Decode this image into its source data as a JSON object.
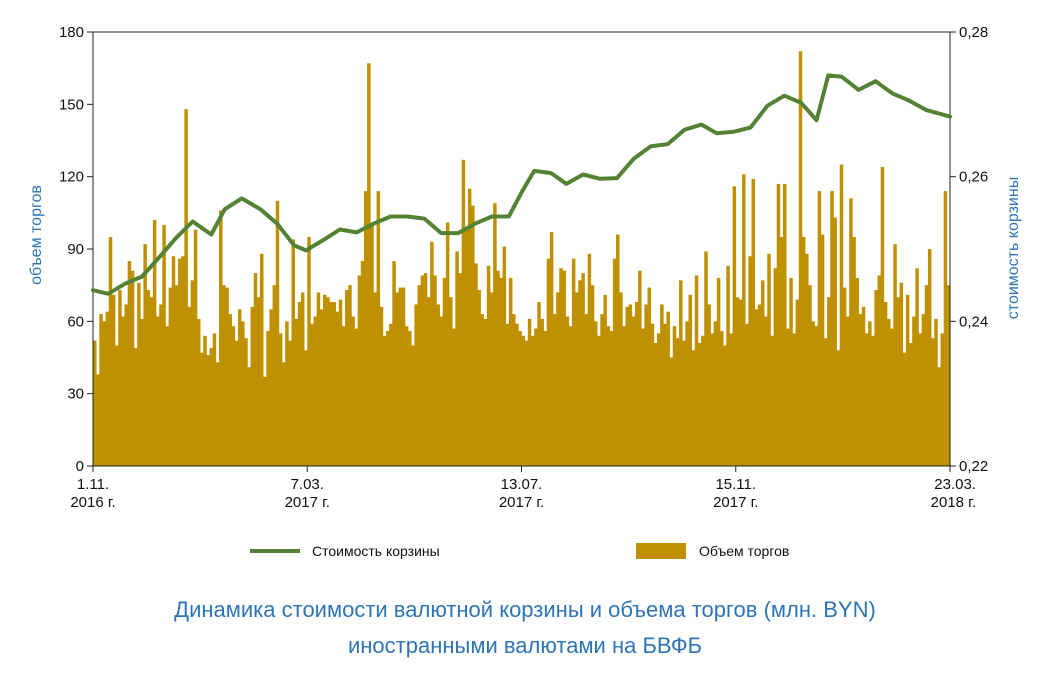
{
  "caption": {
    "line1": "Динамика стоимости валютной корзины и объема торгов (млн. BYN)",
    "line2": "иностранными валютами на БВФБ"
  },
  "chart_data": {
    "type": "bar+line",
    "left_axis": {
      "label": "объем торгов",
      "ylim": [
        0,
        180
      ],
      "ticks": [
        "0",
        "30",
        "60",
        "90",
        "120",
        "150",
        "180"
      ]
    },
    "right_axis": {
      "label": "стоимость корзины",
      "ylim": [
        0.22,
        0.28
      ],
      "ticks": [
        "0,22",
        "0,24",
        "0,26",
        "0,28"
      ]
    },
    "x_ticks": [
      {
        "line1": "1.11.",
        "line2": "2016 г."
      },
      {
        "line1": "7.03.",
        "line2": "2017 г."
      },
      {
        "line1": "13.07.",
        "line2": "2017 г."
      },
      {
        "line1": "15.11.",
        "line2": "2017 г."
      },
      {
        "line1": "23.03.",
        "line2": "2018 г."
      }
    ],
    "x_range": [
      "2016-11-01",
      "2018-03-23"
    ],
    "legend": [
      {
        "label": "Стоимость корзины",
        "kind": "line",
        "color": "#548235"
      },
      {
        "label": "Объем торгов",
        "kind": "bar",
        "color": "#bf9000"
      }
    ],
    "line_series": {
      "name": "Стоимость корзины",
      "points": [
        [
          "2016-11-01",
          0.2443
        ],
        [
          "2016-11-10",
          0.2438
        ],
        [
          "2016-11-20",
          0.2452
        ],
        [
          "2016-11-30",
          0.2462
        ],
        [
          "2016-12-10",
          0.2488
        ],
        [
          "2016-12-20",
          0.2515
        ],
        [
          "2016-12-30",
          0.2538
        ],
        [
          "2017-01-10",
          0.252
        ],
        [
          "2017-01-18",
          0.2555
        ],
        [
          "2017-01-28",
          0.257
        ],
        [
          "2017-02-08",
          0.2555
        ],
        [
          "2017-02-18",
          0.2535
        ],
        [
          "2017-02-28",
          0.2505
        ],
        [
          "2017-03-07",
          0.2498
        ],
        [
          "2017-03-17",
          0.2512
        ],
        [
          "2017-03-27",
          0.2527
        ],
        [
          "2017-04-06",
          0.2523
        ],
        [
          "2017-04-16",
          0.2535
        ],
        [
          "2017-04-26",
          0.2545
        ],
        [
          "2017-05-06",
          0.2545
        ],
        [
          "2017-05-16",
          0.2542
        ],
        [
          "2017-05-26",
          0.2522
        ],
        [
          "2017-06-05",
          0.2522
        ],
        [
          "2017-06-15",
          0.2535
        ],
        [
          "2017-06-25",
          0.2545
        ],
        [
          "2017-07-05",
          0.2545
        ],
        [
          "2017-07-13",
          0.258
        ],
        [
          "2017-07-20",
          0.2608
        ],
        [
          "2017-07-30",
          0.2605
        ],
        [
          "2017-08-08",
          0.259
        ],
        [
          "2017-08-18",
          0.2603
        ],
        [
          "2017-08-28",
          0.2597
        ],
        [
          "2017-09-07",
          0.2598
        ],
        [
          "2017-09-17",
          0.2625
        ],
        [
          "2017-09-27",
          0.2642
        ],
        [
          "2017-10-07",
          0.2645
        ],
        [
          "2017-10-17",
          0.2665
        ],
        [
          "2017-10-27",
          0.2672
        ],
        [
          "2017-11-05",
          0.266
        ],
        [
          "2017-11-15",
          0.2662
        ],
        [
          "2017-11-25",
          0.2668
        ],
        [
          "2017-12-05",
          0.2698
        ],
        [
          "2017-12-15",
          0.2712
        ],
        [
          "2017-12-25",
          0.2702
        ],
        [
          "2018-01-03",
          0.2678
        ],
        [
          "2018-01-10",
          0.274
        ],
        [
          "2018-01-18",
          0.2738
        ],
        [
          "2018-01-28",
          0.272
        ],
        [
          "2018-02-07",
          0.2732
        ],
        [
          "2018-02-17",
          0.2715
        ],
        [
          "2018-02-27",
          0.2705
        ],
        [
          "2018-03-09",
          0.2692
        ],
        [
          "2018-03-23",
          0.2683
        ]
      ]
    },
    "bar_series": {
      "name": "Объем торгов",
      "values": [
        52,
        38,
        63,
        60,
        64,
        95,
        71,
        50,
        73,
        62,
        67,
        85,
        81,
        49,
        76,
        61,
        92,
        73,
        70,
        102,
        62,
        67,
        100,
        58,
        74,
        87,
        75,
        86,
        87,
        148,
        66,
        77,
        98,
        61,
        47,
        54,
        46,
        49,
        55,
        43,
        106,
        75,
        74,
        63,
        58,
        52,
        65,
        60,
        53,
        41,
        66,
        80,
        70,
        88,
        37,
        56,
        65,
        75,
        110,
        55,
        43,
        60,
        52,
        94,
        61,
        68,
        72,
        48,
        95,
        59,
        62,
        72,
        65,
        71,
        70,
        68,
        68,
        64,
        69,
        58,
        73,
        75,
        62,
        57,
        79,
        85,
        114,
        167,
        100,
        72,
        114,
        66,
        54,
        56,
        59,
        85,
        72,
        74,
        74,
        58,
        56,
        50,
        67,
        75,
        79,
        80,
        70,
        93,
        79,
        67,
        62,
        78,
        101,
        70,
        57,
        89,
        80,
        127,
        99,
        115,
        108,
        84,
        73,
        63,
        61,
        83,
        72,
        109,
        81,
        78,
        91,
        59,
        78,
        63,
        59,
        56,
        54,
        52,
        61,
        54,
        57,
        68,
        61,
        56,
        86,
        97,
        63,
        72,
        82,
        81,
        62,
        58,
        86,
        72,
        77,
        80,
        63,
        88,
        75,
        60,
        54,
        63,
        71,
        58,
        56,
        86,
        96,
        72,
        58,
        66,
        67,
        62,
        68,
        81,
        57,
        67,
        74,
        59,
        51,
        55,
        67,
        59,
        64,
        45,
        58,
        53,
        77,
        52,
        60,
        71,
        48,
        79,
        51,
        54,
        89,
        67,
        55,
        60,
        78,
        56,
        50,
        83,
        55,
        116,
        70,
        69,
        121,
        59,
        87,
        119,
        65,
        67,
        77,
        62,
        88,
        54,
        82,
        117,
        95,
        117,
        57,
        78,
        55,
        69,
        172,
        95,
        88,
        75,
        60,
        58,
        114,
        96,
        53,
        70,
        114,
        103,
        48,
        125,
        74,
        62,
        111,
        95,
        78,
        63,
        66,
        55,
        60,
        54,
        73,
        79,
        124,
        68,
        61,
        57,
        92,
        70,
        76,
        47,
        71,
        51,
        62,
        82,
        55,
        63,
        75,
        90,
        53,
        61,
        41,
        55,
        114,
        75
      ]
    }
  }
}
